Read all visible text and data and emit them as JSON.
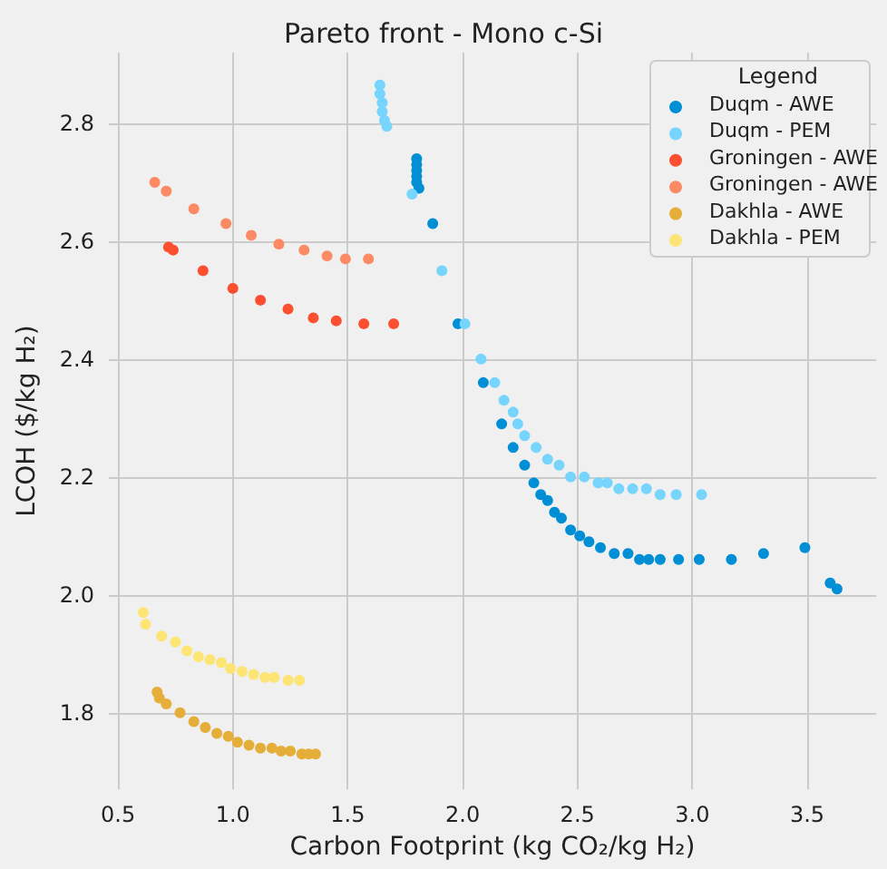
{
  "chart_data": {
    "type": "scatter",
    "title": "Pareto front - Mono c-Si",
    "xlabel": "Carbon Footprint (kg CO₂/kg H₂)",
    "ylabel": "LCOH ($/kg H₂)",
    "legend_title": "Legend",
    "legend": "top right",
    "grid": true,
    "marker": "circle",
    "xlim": [
      0.46,
      3.8
    ],
    "ylim": [
      1.67,
      2.92
    ],
    "xticks": [
      {
        "value": 0.5,
        "label": "0.5"
      },
      {
        "value": 1,
        "label": "1.0"
      },
      {
        "value": 1.5,
        "label": "1.5"
      },
      {
        "value": 2,
        "label": "2.0"
      },
      {
        "value": 2.5,
        "label": "2.5"
      },
      {
        "value": 3,
        "label": "3.0"
      },
      {
        "value": 3.5,
        "label": "3.5"
      }
    ],
    "yticks": [
      {
        "value": 1.8,
        "label": "1.8"
      },
      {
        "value": 2,
        "label": "2.0"
      },
      {
        "value": 2.2,
        "label": "2.2"
      },
      {
        "value": 2.4,
        "label": "2.4"
      },
      {
        "value": 2.6,
        "label": "2.6"
      },
      {
        "value": 2.8,
        "label": "2.8"
      }
    ],
    "series": [
      {
        "name": "Duqm - AWE",
        "color": "#008fd5",
        "x": [
          1.8,
          1.8,
          1.8,
          1.8,
          1.8,
          1.81,
          1.87,
          1.98,
          2.09,
          2.17,
          2.22,
          2.27,
          2.31,
          2.34,
          2.37,
          2.4,
          2.43,
          2.47,
          2.51,
          2.55,
          2.6,
          2.66,
          2.72,
          2.77,
          2.81,
          2.86,
          2.94,
          3.03,
          3.17,
          3.31,
          3.49,
          3.6,
          3.63
        ],
        "values": [
          2.74,
          2.73,
          2.72,
          2.71,
          2.7,
          2.69,
          2.63,
          2.46,
          2.36,
          2.29,
          2.25,
          2.22,
          2.19,
          2.17,
          2.16,
          2.14,
          2.13,
          2.11,
          2.1,
          2.09,
          2.08,
          2.07,
          2.07,
          2.06,
          2.06,
          2.06,
          2.06,
          2.06,
          2.06,
          2.07,
          2.08,
          2.02,
          2.01
        ]
      },
      {
        "name": "Duqm - PEM",
        "color": "#77d4fc",
        "x": [
          1.64,
          1.64,
          1.65,
          1.65,
          1.66,
          1.67,
          1.78,
          1.91,
          2.01,
          2.08,
          2.14,
          2.18,
          2.22,
          2.24,
          2.27,
          2.32,
          2.37,
          2.42,
          2.47,
          2.53,
          2.59,
          2.63,
          2.68,
          2.74,
          2.8,
          2.86,
          2.93,
          3.04
        ],
        "values": [
          2.865,
          2.85,
          2.835,
          2.82,
          2.805,
          2.795,
          2.68,
          2.55,
          2.46,
          2.4,
          2.36,
          2.33,
          2.31,
          2.29,
          2.27,
          2.25,
          2.23,
          2.22,
          2.2,
          2.2,
          2.19,
          2.19,
          2.18,
          2.18,
          2.18,
          2.17,
          2.17,
          2.17
        ]
      },
      {
        "name": "Groningen - AWE",
        "color": "#fc4f30",
        "x": [
          0.72,
          0.74,
          0.87,
          1.0,
          1.12,
          1.24,
          1.35,
          1.45,
          1.57,
          1.7
        ],
        "values": [
          2.59,
          2.585,
          2.55,
          2.52,
          2.5,
          2.485,
          2.47,
          2.465,
          2.46,
          2.46
        ]
      },
      {
        "name": "Groningen - AWE",
        "color": "#fc8a65",
        "x": [
          0.66,
          0.71,
          0.83,
          0.97,
          1.08,
          1.2,
          1.31,
          1.41,
          1.49,
          1.59
        ],
        "values": [
          2.7,
          2.685,
          2.655,
          2.63,
          2.61,
          2.595,
          2.585,
          2.575,
          2.57,
          2.57
        ]
      },
      {
        "name": "Dakhla - AWE",
        "color": "#e5ae38",
        "x": [
          0.67,
          0.68,
          0.71,
          0.77,
          0.83,
          0.88,
          0.93,
          0.98,
          1.02,
          1.07,
          1.12,
          1.17,
          1.21,
          1.25,
          1.3,
          1.33,
          1.36
        ],
        "values": [
          1.835,
          1.825,
          1.815,
          1.8,
          1.785,
          1.775,
          1.765,
          1.76,
          1.75,
          1.745,
          1.74,
          1.74,
          1.735,
          1.735,
          1.73,
          1.73,
          1.73
        ]
      },
      {
        "name": "Dakhla - PEM",
        "color": "#fde575",
        "x": [
          0.61,
          0.62,
          0.69,
          0.75,
          0.8,
          0.85,
          0.9,
          0.95,
          0.99,
          1.04,
          1.09,
          1.14,
          1.18,
          1.24,
          1.29
        ],
        "values": [
          1.97,
          1.95,
          1.93,
          1.92,
          1.905,
          1.895,
          1.89,
          1.885,
          1.875,
          1.87,
          1.865,
          1.86,
          1.86,
          1.855,
          1.855
        ]
      }
    ]
  }
}
